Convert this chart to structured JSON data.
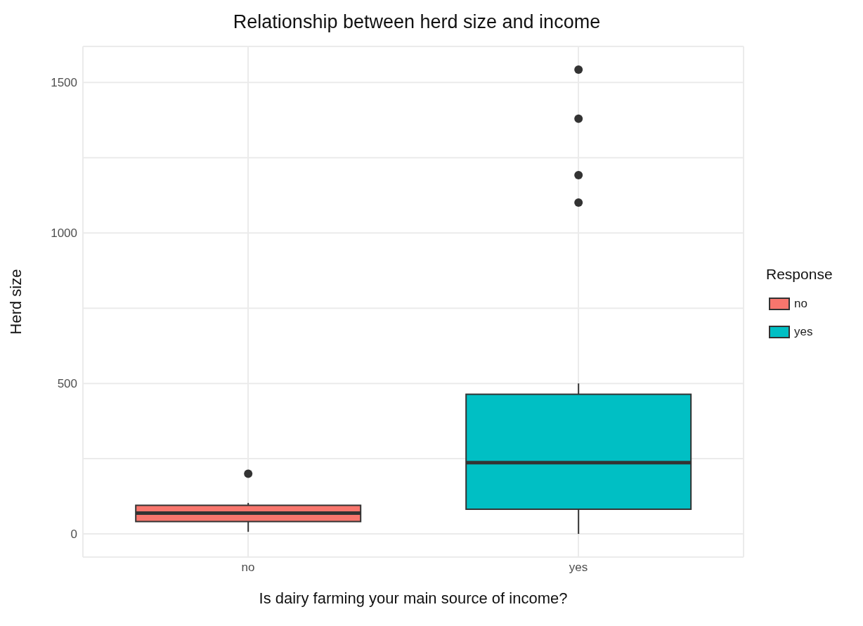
{
  "chart_data": {
    "type": "box",
    "title": "Relationship between herd size and income",
    "xlabel": "Is dairy farming your main source of income?",
    "ylabel": "Herd size",
    "legend_title": "Response",
    "categories": [
      "no",
      "yes"
    ],
    "series": [
      {
        "name": "no",
        "color": "#f8766d",
        "boxes": [
          {
            "low": 7,
            "q1": 41,
            "median": 69,
            "q3": 95,
            "high": 103,
            "outliers": [
              200
            ]
          },
          null
        ]
      },
      {
        "name": "yes",
        "color": "#00bfc4",
        "boxes": [
          null,
          {
            "low": 0,
            "q1": 82,
            "median": 237,
            "q3": 464,
            "high": 500,
            "outliers": [
              1101,
              1192,
              1380,
              1543
            ]
          }
        ]
      }
    ],
    "ylim": [
      -77,
      1620
    ],
    "yticks": [
      0,
      {
        "value": 250,
        "label": null
      },
      500,
      {
        "value": 750,
        "label": null
      },
      1000,
      {
        "value": 1250,
        "label": null
      },
      1500
    ],
    "grid": true,
    "legend": "right"
  }
}
